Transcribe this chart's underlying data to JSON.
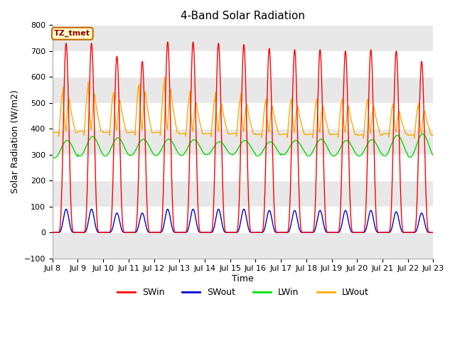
{
  "title": "4-Band Solar Radiation",
  "xlabel": "Time",
  "ylabel": "Solar Radiation (W/m2)",
  "ylim": [
    -100,
    800
  ],
  "x_tick_labels": [
    "Jul 8",
    "Jul 9",
    "Jul 10",
    "Jul 11",
    "Jul 12",
    "Jul 13",
    "Jul 14",
    "Jul 15",
    "Jul 16",
    "Jul 17",
    "Jul 18",
    "Jul 19",
    "Jul 20",
    "Jul 21",
    "Jul 22",
    "Jul 23"
  ],
  "annotation_text": "TZ_tmet",
  "annotation_box_color": "#ffffcc",
  "annotation_border_color": "#cc6600",
  "colors": {
    "SWin": "#ff0000",
    "SWout": "#0000cc",
    "LWin": "#00dd00",
    "LWout": "#ffaa00"
  },
  "background_color": "#ffffff",
  "plot_bg_color": "#ffffff",
  "n_days": 15,
  "hours_per_day": 24,
  "dt_hours": 0.1,
  "SWin_peak": [
    730,
    730,
    680,
    660,
    735,
    735,
    730,
    725,
    710,
    705,
    705,
    700,
    705,
    700,
    660
  ],
  "SWout_peak": [
    90,
    90,
    75,
    75,
    90,
    90,
    90,
    90,
    85,
    85,
    85,
    85,
    85,
    80,
    75
  ],
  "LWin_base": [
    288,
    295,
    295,
    297,
    297,
    297,
    300,
    300,
    295,
    300,
    295,
    295,
    295,
    295,
    290
  ],
  "LWin_peak": [
    355,
    370,
    365,
    360,
    360,
    358,
    350,
    355,
    350,
    355,
    360,
    355,
    358,
    375,
    380
  ],
  "LWout_valley": [
    390,
    395,
    395,
    395,
    395,
    390,
    390,
    390,
    385,
    385,
    385,
    385,
    382,
    387,
    382
  ],
  "LWout_peak": [
    560,
    580,
    555,
    590,
    600,
    545,
    540,
    535,
    530,
    530,
    530,
    530,
    528,
    508,
    510
  ],
  "LWout_start": [
    385,
    390,
    385,
    385,
    385,
    380,
    380,
    380,
    378,
    378,
    378,
    378,
    375,
    380,
    375
  ]
}
